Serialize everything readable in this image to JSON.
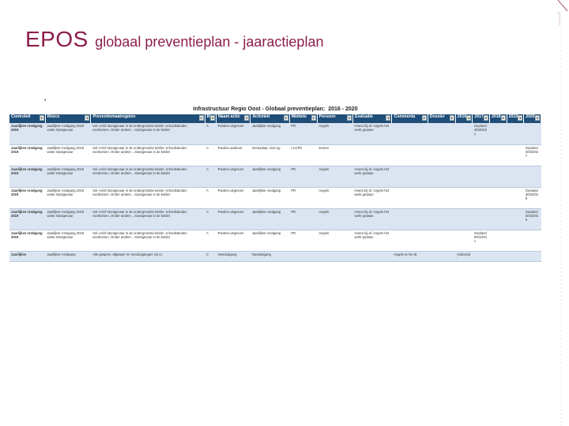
{
  "slide": {
    "title_main": "EPOS",
    "title_sub": "globaal preventieplan - jaaractieplan",
    "bullet": "•"
  },
  "sheet": {
    "title": "Infrastructuur Regio Oost - Globaal preventieplan:",
    "years": "2016 - 2020",
    "headers": [
      "Controleit",
      "Risico",
      "Preventiemaatregelen",
      "Ri",
      "Naam actie",
      "Activiteit",
      "Middele",
      "Persoon",
      "Evaluatie",
      "Commenta",
      "Dossier",
      "2016",
      "2017",
      "2018",
      "2019",
      "2020"
    ],
    "dropdown_glyph": "▾",
    "rows": [
      [
        "Jaarlijkse rondgang 2019",
        "Jaarlijkse rondgang 2019 vaste stootgevaar",
        "Val- en/of stootgevaar in de ondergrondse kelder. schoolstanden voorkomen. Onder andere ...stootgevaar in de kelder",
        "A",
        "Panden uitgevoer",
        "Jaarlijkse rondgang",
        "PR",
        "Angelo",
        "Hoera bij af. Angelo het werk gedaan",
        "",
        "",
        "",
        "Gepland 3/03/202 7",
        "",
        "",
        ""
      ],
      [
        "Jaarlijkse rondgang 2019",
        "Jaarlijkse rondgang 2019 vaste stootgevaar",
        "Val- en/of stootgevaar in de ondergrondse kelder. schoolstanden voorkomen. Onder andere ...stootgevaar in de kelder",
        "A",
        "Panden aankoot",
        "Interpolaar, vind ng",
        "LCCPE",
        "Jeroen",
        "",
        "",
        "",
        "",
        "",
        "",
        "",
        "Gepland 3/03/202 7"
      ],
      [
        "Jaarlijkse rondgang 2019",
        "Jaarlijkse rondgang 2019 vaste stootgevaar",
        "Val- en/of stootgevaar in de ondergrondse kelder. schoolstanden voorkomen. Onder andere ...stootgevaar in de kelder",
        "A",
        "Panden uitgevoer",
        "Jaarlijkse rondgang",
        "PR",
        "Angelo",
        "Hoera bij af. Angelo het werk gedaan",
        "",
        "",
        "",
        "",
        "",
        "",
        ""
      ],
      [
        "Jaarlijkse rondgang 2019",
        "Jaarlijkse rondgang 2019 vaste stootgevaar",
        "Val- en/of stootgevaar in de ondergrondse kelder. schoolstanden voorkomen. Onder andere ...stootgevaar in de kelder",
        "A",
        "Panden uitgevoer",
        "Jaarlijkse rondgang",
        "PR",
        "Angelo",
        "Hoera bij af. Angelo het werk gedaan",
        "",
        "",
        "",
        "",
        "",
        "",
        "Gepland 3/03/202 8"
      ],
      [
        "Jaarlijkse rondgang 2019",
        "Jaarlijkse rondgang 2019 vaste stootgevaar",
        "Val- en/of stootgevaar in de ondergrondse kelder. schoolstanden voorkomen. Onder andere ...stootgevaar in de kelder",
        "A",
        "Panden uitgevoer",
        "Jaarlijkse rondgang",
        "PR",
        "Angelo",
        "Hoera bij af. Angelo het werk gedaan",
        "",
        "",
        "",
        "",
        "",
        "",
        "Gepland 3/03/202 9"
      ],
      [
        "Jaarlijkse rondgang 2019",
        "Jaarlijkse rondgang 2019 vaste stootgevaar",
        "Val- en/of stootgevaar in de ondergrondse kelder. schoolstanden voorkomen. Onder andere ...stootgevaar in de kelder",
        "A",
        "Panden uitgevoer",
        "Jaarlijkse rondgang",
        "PR",
        "Angelo",
        "Hoera bij af. Angelo het werk gedaan",
        "",
        "",
        "",
        "Gepland 9/01/201 v",
        "",
        "",
        ""
      ],
      [
        "Jaarlijkse",
        "Jaarlijkse rondgang",
        "Alle gaspeer, afgasper en noodudgangen vrij er.",
        "C",
        "Noodudgang",
        "Noodudgang",
        "",
        "",
        "",
        "Angelo at het dr.",
        "",
        "ondcsoid:",
        "",
        "",
        "",
        ""
      ]
    ]
  },
  "colors": {
    "title": "#8b1e4a",
    "header_bg": "#1f4e79",
    "row_band": "#dbe5f1",
    "accent": "#8b1e4a"
  }
}
